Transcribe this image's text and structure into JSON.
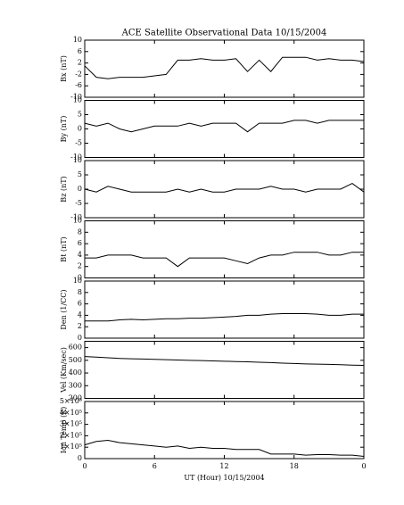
{
  "chart_data": [
    {
      "type": "line",
      "title": "ACE Satellite Observational Data   10/15/2004",
      "ylabel": "Bx (nT)",
      "color": "#000000",
      "x": [
        0,
        1,
        2,
        3,
        4,
        5,
        6,
        7,
        8,
        9,
        10,
        11,
        12,
        13,
        14,
        15,
        16,
        17,
        18,
        19,
        20,
        21,
        22,
        23,
        24
      ],
      "values": [
        1,
        -3,
        -3.5,
        -3,
        -3,
        -3,
        -2.5,
        -2,
        3,
        3,
        3.5,
        3,
        3,
        3.5,
        -1,
        3,
        -1,
        4,
        4,
        4,
        3,
        3.5,
        3,
        3,
        2.5
      ],
      "xlim": [
        0,
        24
      ],
      "ylim": [
        -10,
        10
      ],
      "yticks": [
        -10,
        -6,
        -2,
        2,
        6,
        10
      ]
    },
    {
      "type": "line",
      "ylabel": "By (nT)",
      "color": "#000000",
      "x": [
        0,
        1,
        2,
        3,
        4,
        5,
        6,
        7,
        8,
        9,
        10,
        11,
        12,
        13,
        14,
        15,
        16,
        17,
        18,
        19,
        20,
        21,
        22,
        23,
        24
      ],
      "values": [
        2,
        1,
        2,
        0,
        -1,
        0,
        1,
        1,
        1,
        2,
        1,
        2,
        2,
        2,
        -1,
        2,
        2,
        2,
        3,
        3,
        2,
        3,
        3,
        3,
        3
      ],
      "xlim": [
        0,
        24
      ],
      "ylim": [
        -10,
        10
      ],
      "yticks": [
        -10,
        -5,
        0,
        5,
        10
      ]
    },
    {
      "type": "line",
      "ylabel": "Bz (nT)",
      "color": "#000000",
      "x": [
        0,
        1,
        2,
        3,
        4,
        5,
        6,
        7,
        8,
        9,
        10,
        11,
        12,
        13,
        14,
        15,
        16,
        17,
        18,
        19,
        20,
        21,
        22,
        23,
        24
      ],
      "values": [
        0,
        -1,
        1,
        0,
        -1,
        -1,
        -1,
        -1,
        0,
        -1,
        0,
        -1,
        -1,
        0,
        0,
        0,
        1,
        0,
        0,
        -1,
        0,
        0,
        0,
        2,
        -1
      ],
      "xlim": [
        0,
        24
      ],
      "ylim": [
        -10,
        10
      ],
      "yticks": [
        -10,
        -5,
        0,
        5,
        10
      ]
    },
    {
      "type": "line",
      "ylabel": "Bt (nT)",
      "color": "#000000",
      "x": [
        0,
        1,
        2,
        3,
        4,
        5,
        6,
        7,
        8,
        9,
        10,
        11,
        12,
        13,
        14,
        15,
        16,
        17,
        18,
        19,
        20,
        21,
        22,
        23,
        24
      ],
      "values": [
        3.5,
        3.5,
        4,
        4,
        4,
        3.5,
        3.5,
        3.5,
        2,
        3.5,
        3.5,
        3.5,
        3.5,
        3,
        2.5,
        3.5,
        4,
        4,
        4.5,
        4.5,
        4.5,
        4,
        4,
        4.5,
        4.5
      ],
      "xlim": [
        0,
        24
      ],
      "ylim": [
        0,
        10
      ],
      "yticks": [
        0,
        2,
        4,
        6,
        8,
        10
      ]
    },
    {
      "type": "line",
      "ylabel": "Den (1/CC)",
      "color": "#000000",
      "x": [
        0,
        1,
        2,
        3,
        4,
        5,
        6,
        7,
        8,
        9,
        10,
        11,
        12,
        13,
        14,
        15,
        16,
        17,
        18,
        19,
        20,
        21,
        22,
        23,
        24
      ],
      "values": [
        3,
        3,
        3,
        3.2,
        3.3,
        3.2,
        3.3,
        3.4,
        3.4,
        3.5,
        3.5,
        3.6,
        3.7,
        3.8,
        4,
        4,
        4.2,
        4.3,
        4.3,
        4.3,
        4.2,
        4,
        4,
        4.2,
        4.2
      ],
      "xlim": [
        0,
        24
      ],
      "ylim": [
        0,
        10
      ],
      "yticks": [
        0,
        2,
        4,
        6,
        8,
        10
      ]
    },
    {
      "type": "line",
      "ylabel": "Vel (Km/sec)",
      "color": "#000000",
      "x": [
        0,
        1,
        2,
        3,
        4,
        5,
        6,
        7,
        8,
        9,
        10,
        11,
        12,
        13,
        14,
        15,
        16,
        17,
        18,
        19,
        20,
        21,
        22,
        23,
        24
      ],
      "values": [
        530,
        525,
        520,
        515,
        512,
        510,
        508,
        505,
        502,
        500,
        498,
        495,
        493,
        490,
        488,
        485,
        482,
        478,
        475,
        472,
        470,
        468,
        465,
        462,
        460
      ],
      "xlim": [
        0,
        24
      ],
      "ylim": [
        200,
        650
      ],
      "yticks": [
        200,
        300,
        400,
        500,
        600
      ]
    },
    {
      "type": "line",
      "ylabel": "Ion Temp (K)",
      "xlabel": "UT (Hour)  10/15/2004",
      "color": "#000000",
      "x": [
        0,
        1,
        2,
        3,
        4,
        5,
        6,
        7,
        8,
        9,
        10,
        11,
        12,
        13,
        14,
        15,
        16,
        17,
        18,
        19,
        20,
        21,
        22,
        23,
        24
      ],
      "values": [
        120000,
        150000,
        160000,
        140000,
        130000,
        120000,
        110000,
        100000,
        110000,
        90000,
        100000,
        90000,
        90000,
        80000,
        80000,
        80000,
        40000,
        40000,
        40000,
        30000,
        35000,
        35000,
        30000,
        30000,
        20000
      ],
      "xlim": [
        0,
        24
      ],
      "ylim": [
        0,
        500000
      ],
      "yticks": [
        0,
        {
          "value": 100000,
          "label": "1×10⁵"
        },
        {
          "value": 200000,
          "label": "2×10⁵"
        },
        {
          "value": 300000,
          "label": "3×10⁵"
        },
        {
          "value": 400000,
          "label": "4×10⁵"
        },
        {
          "value": 500000,
          "label": "5×10⁵"
        }
      ],
      "xticks": [
        0,
        6,
        12,
        18,
        {
          "value": 24,
          "label": "0"
        }
      ]
    }
  ]
}
